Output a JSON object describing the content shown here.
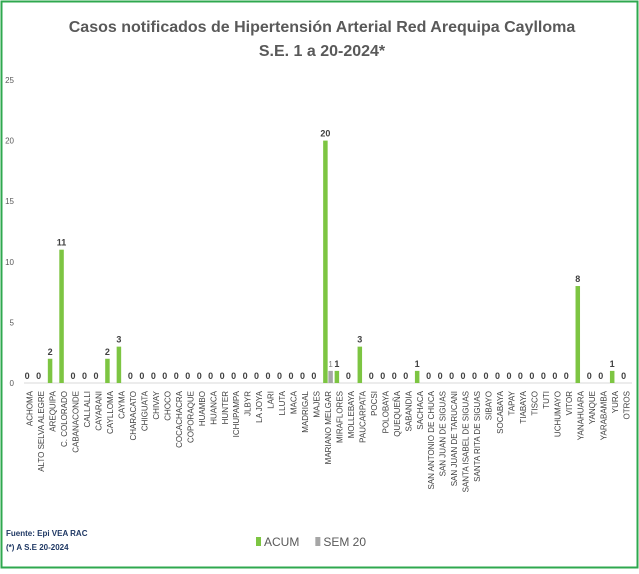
{
  "chart_data": {
    "type": "bar",
    "title": "Casos notificados de Hipertensión Arterial Red Arequipa  Caylloma",
    "subtitle": "S.E. 1 a 20-2024*",
    "categories": [
      "ACHOMA",
      "ALTO SELVA ALEGRE",
      "AREQUIPA",
      "C. COLORADO",
      "CABANACONDE",
      "CALLALLI",
      "CAYARANI",
      "CAYLLOMA",
      "CAYMA",
      "CHARACATO",
      "CHIGUATA",
      "CHIVAY",
      "CHOCO",
      "COCACHACRA",
      "COPORAQUE",
      "HUAMBO",
      "HUANCA",
      "HUNTER",
      "ICHUPAMPA",
      "JLBYR",
      "LA JOYA",
      "LARI",
      "LLUTA",
      "MACA",
      "MADRIGAL",
      "MAJES",
      "MARIANO MELGAR",
      "MIRAFLORES",
      "MOLLEBAYA",
      "PAUCARPATA",
      "POCSI",
      "POLOBAYA",
      "QUEQUEÑA",
      "SABANDIA",
      "SACHACA",
      "SAN ANTONIO DE CHUCA",
      "SAN JUAN DE SIGUAS",
      "SAN JUAN DE TARUCANI",
      "SANTA ISABEL DE SIGUAS",
      "SANTA RITA DE SIGUAS",
      "SIBAYO",
      "SOCABAYA",
      "TAPAY",
      "TIABAYA",
      "TISCO",
      "TUTI",
      "UCHUMAYO",
      "VITOR",
      "YANAHUARA",
      "YANQUE",
      "YARABAMBA",
      "YURA",
      "OTROS"
    ],
    "series": [
      {
        "name": "ACUM",
        "color": "#7dc542",
        "values": [
          0,
          0,
          2,
          11,
          0,
          0,
          0,
          2,
          3,
          0,
          0,
          0,
          0,
          0,
          0,
          0,
          0,
          0,
          0,
          0,
          0,
          0,
          0,
          0,
          0,
          0,
          20,
          1,
          0,
          3,
          0,
          0,
          0,
          0,
          1,
          0,
          0,
          0,
          0,
          0,
          0,
          0,
          0,
          0,
          0,
          0,
          0,
          0,
          8,
          0,
          0,
          1,
          0
        ]
      },
      {
        "name": "SEM 20",
        "color": "#a6a6a6",
        "values": [
          null,
          null,
          null,
          null,
          null,
          null,
          null,
          null,
          null,
          null,
          null,
          null,
          null,
          null,
          null,
          null,
          null,
          null,
          null,
          null,
          null,
          null,
          null,
          null,
          null,
          null,
          1,
          null,
          null,
          null,
          null,
          null,
          null,
          null,
          null,
          null,
          null,
          null,
          null,
          null,
          null,
          null,
          null,
          null,
          null,
          null,
          null,
          null,
          null,
          null,
          null,
          null,
          null
        ]
      }
    ],
    "ylim": [
      0,
      25
    ],
    "yticks": [
      0,
      5,
      10,
      15,
      20,
      25
    ],
    "grid": false,
    "source": "Fuente: Epi VEA RAC",
    "note": "(*) A S.E 20-2024"
  }
}
